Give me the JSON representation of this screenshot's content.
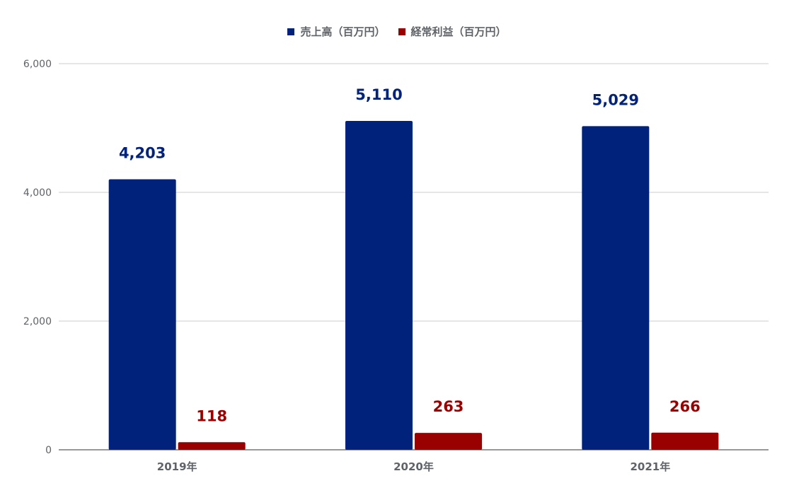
{
  "chart_data": {
    "type": "bar",
    "categories": [
      "2019年",
      "2020年",
      "2021年"
    ],
    "series": [
      {
        "name": "売上高（百万円）",
        "values": [
          4203,
          5110,
          5029
        ],
        "labels": [
          "4,203",
          "5,110",
          "5,029"
        ],
        "color": "#00227a"
      },
      {
        "name": "経常利益（百万円）",
        "values": [
          118,
          263,
          266
        ],
        "labels": [
          "118",
          "263",
          "266"
        ],
        "color": "#990000"
      }
    ],
    "ylim": [
      0,
      6000
    ],
    "yticks": [
      0,
      2000,
      4000,
      6000
    ],
    "ytick_labels": [
      "0",
      "2,000",
      "4,000",
      "6,000"
    ],
    "grid": true,
    "legend_position": "top"
  },
  "legend": {
    "revenue": "売上高（百万円）",
    "profit": "経常利益（百万円）"
  }
}
